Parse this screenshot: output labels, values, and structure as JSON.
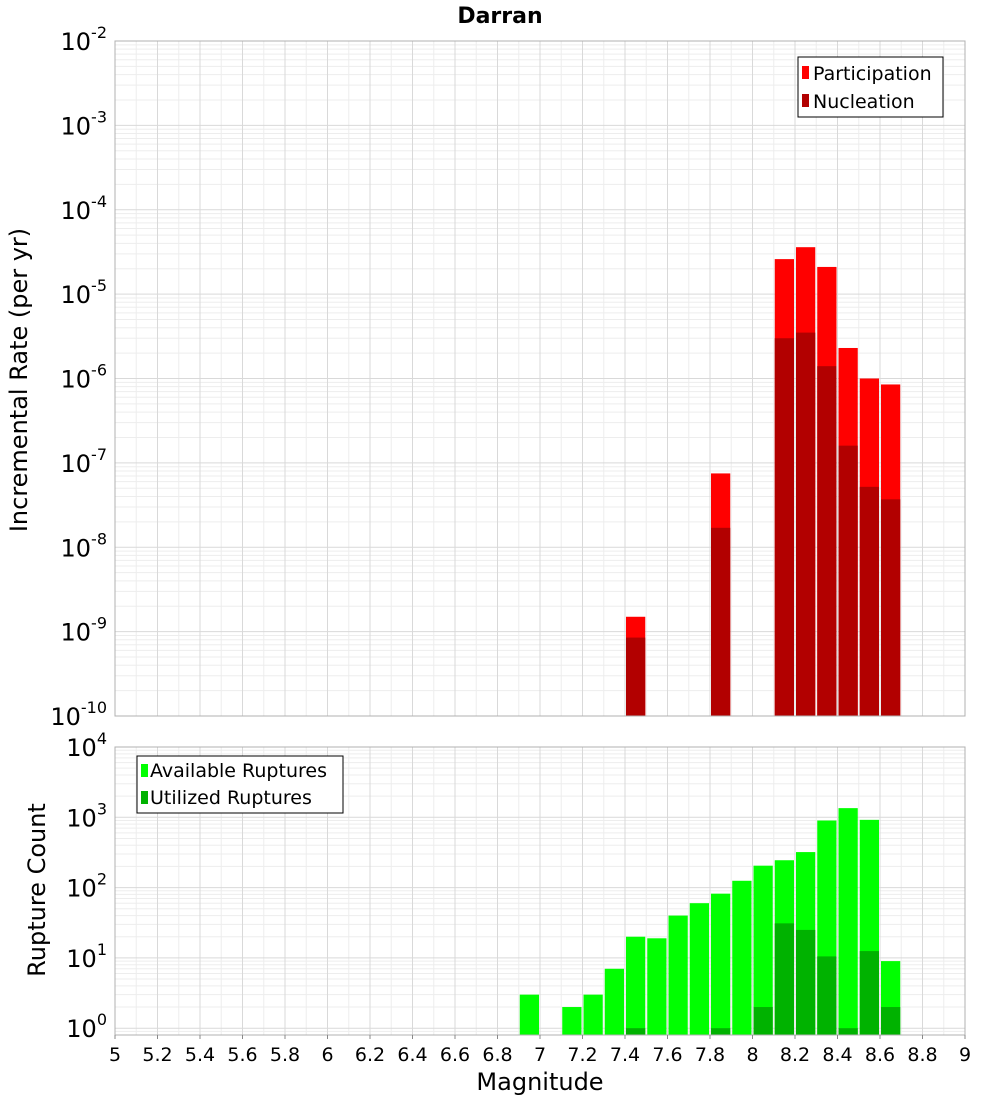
{
  "chart_data": [
    {
      "type": "bar",
      "panel": "top",
      "title": "Darran",
      "xlabel": "",
      "ylabel": "Incremental Rate (per yr)",
      "yscale": "log",
      "ylim": [
        1e-10,
        0.01
      ],
      "xlim": [
        5,
        9
      ],
      "bin_width": 0.1,
      "legend_position": "top-right",
      "series": [
        {
          "name": "Participation",
          "color": "#ff0000",
          "x": [
            7.45,
            7.85,
            8.15,
            8.25,
            8.35,
            8.45,
            8.55,
            8.65
          ],
          "values": [
            1.5e-09,
            7.5e-08,
            2.6e-05,
            3.6e-05,
            2.1e-05,
            2.3e-06,
            1e-06,
            8.5e-07
          ]
        },
        {
          "name": "Nucleation",
          "color": "#b20000",
          "x": [
            7.45,
            7.85,
            8.15,
            8.25,
            8.35,
            8.45,
            8.55,
            8.65
          ],
          "values": [
            8.5e-10,
            1.7e-08,
            3e-06,
            3.5e-06,
            1.4e-06,
            1.6e-07,
            5.2e-08,
            3.7e-08
          ]
        }
      ],
      "ytick_exponents": [
        -10,
        -9,
        -8,
        -7,
        -6,
        -5,
        -4,
        -3,
        -2
      ]
    },
    {
      "type": "bar",
      "panel": "bottom",
      "xlabel": "Magnitude",
      "ylabel": "Rupture Count",
      "yscale": "log",
      "ylim": [
        0.8,
        10000
      ],
      "xlim": [
        5,
        9
      ],
      "bin_width": 0.1,
      "legend_position": "top-left",
      "series": [
        {
          "name": "Available Ruptures",
          "color": "#00ff00",
          "x": [
            6.95,
            7.15,
            7.25,
            7.35,
            7.45,
            7.55,
            7.65,
            7.75,
            7.85,
            7.95,
            8.05,
            8.15,
            8.25,
            8.35,
            8.45,
            8.55,
            8.65
          ],
          "values": [
            3,
            2,
            3,
            7,
            20,
            19,
            40,
            60,
            82,
            125,
            205,
            245,
            320,
            900,
            1350,
            920,
            9
          ]
        },
        {
          "name": "Utilized Ruptures",
          "color": "#00b200",
          "x": [
            7.45,
            7.85,
            8.05,
            8.15,
            8.25,
            8.35,
            8.45,
            8.55,
            8.65
          ],
          "values": [
            1,
            1,
            2,
            31,
            25,
            10.5,
            1,
            12.5,
            2
          ]
        }
      ],
      "ytick_exponents": [
        0,
        1,
        2,
        3,
        4
      ],
      "xticks": [
        "5",
        "5.2",
        "5.4",
        "5.6",
        "5.8",
        "6",
        "6.2",
        "6.4",
        "6.6",
        "6.8",
        "7",
        "7.2",
        "7.4",
        "7.6",
        "7.8",
        "8",
        "8.2",
        "8.4",
        "8.6",
        "8.8",
        "9"
      ]
    }
  ]
}
